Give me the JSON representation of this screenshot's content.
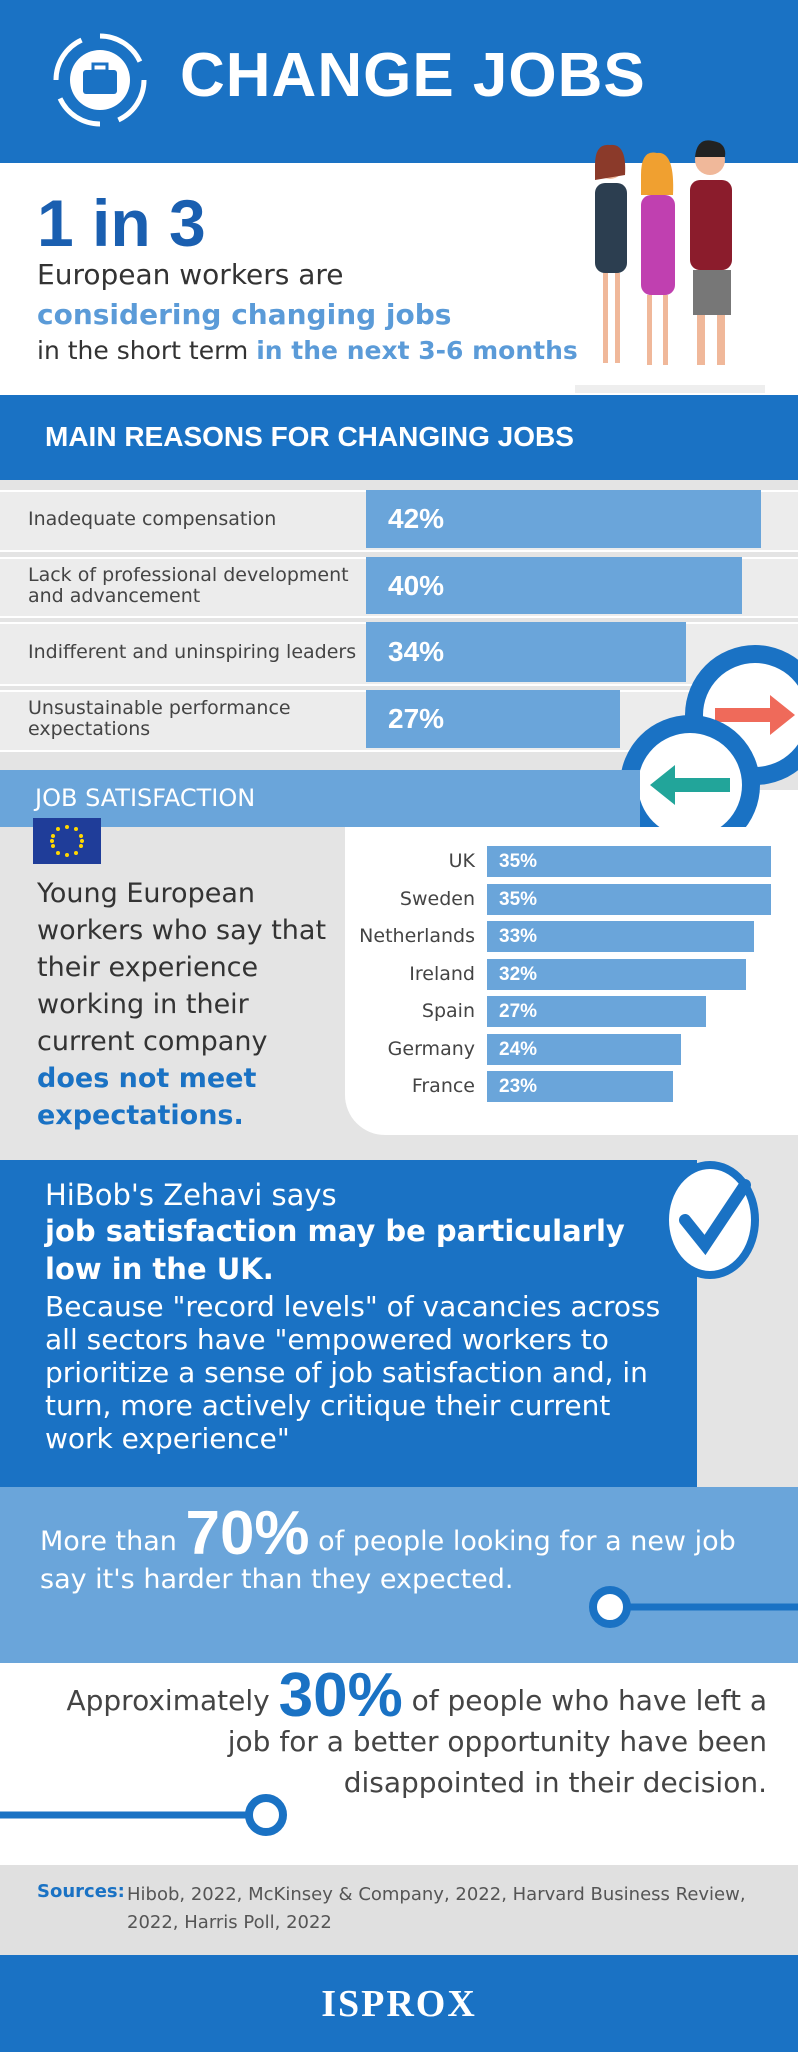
{
  "header": {
    "title": "CHANGE JOBS"
  },
  "hero": {
    "stat": "1 in 3",
    "line1": "European workers are",
    "line2": "considering changing jobs",
    "line3a": "in the short term",
    "line3b": "in the next 3-6 months"
  },
  "chart_data": [
    {
      "type": "bar",
      "orientation": "horizontal",
      "title": "MAIN REASONS FOR CHANGING JOBS",
      "categories": [
        "Inadequate compensation",
        "Lack of professional development and advancement",
        "Indifferent and uninspiring leaders",
        "Unsustainable performance expectations"
      ],
      "values": [
        42,
        40,
        34,
        27
      ],
      "value_labels": [
        "42%",
        "40%",
        "34%",
        "27%"
      ],
      "color": "#6aa5da"
    },
    {
      "type": "bar",
      "orientation": "horizontal",
      "title": "JOB SATISFACTION",
      "categories": [
        "UK",
        "Sweden",
        "Netherlands",
        "Ireland",
        "Spain",
        "Germany",
        "France"
      ],
      "values": [
        35,
        35,
        33,
        32,
        27,
        24,
        23
      ],
      "value_labels": [
        "35%",
        "35%",
        "33%",
        "32%",
        "27%",
        "24%",
        "23%"
      ],
      "color": "#6aa5da"
    }
  ],
  "satisfaction": {
    "text": "Young European workers who say that their experience working in their current company",
    "highlight": "does not meet expectations."
  },
  "quote": {
    "intro": "HiBob's Zehavi says",
    "bold": "job satisfaction may be particularly low in the UK.",
    "body": "Because \"record levels\" of vacancies across all sectors have \"empowered workers to prioritize a sense of job satisfaction and, in turn, more actively critique their current work experience\""
  },
  "stat70": {
    "pre": "More than",
    "big": "70%",
    "post": "of people looking for a new job say it's harder than they expected."
  },
  "stat30": {
    "pre": "Approximately",
    "big": "30%",
    "post": "of people who have left a job for a better opportunity have been disappointed in their decision."
  },
  "sources": {
    "label": "Sources:",
    "text": "Hibob, 2022,  McKinsey & Company, 2022, Harvard Business Review, 2022, Harris Poll, 2022"
  },
  "footer": {
    "logo": "ISPROX"
  }
}
